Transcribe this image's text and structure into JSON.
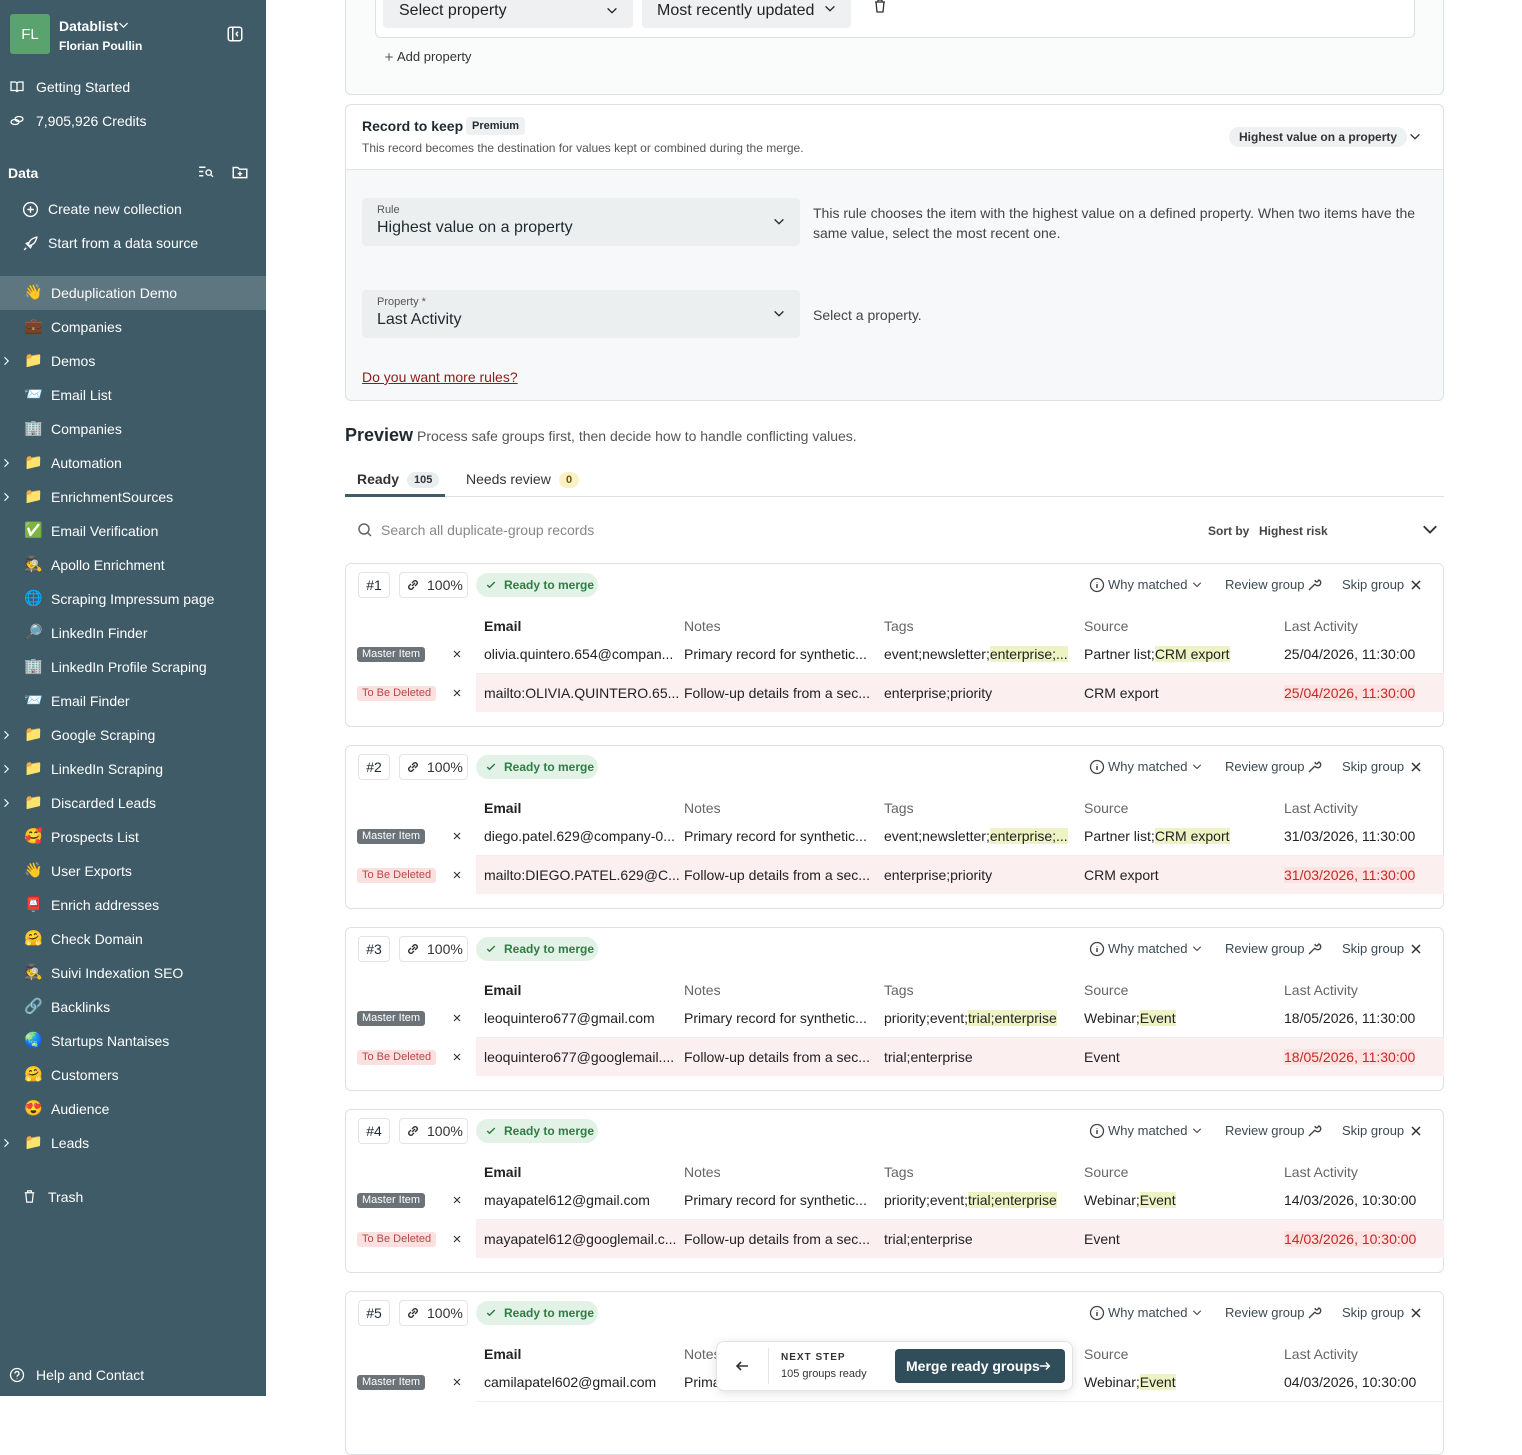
{
  "sidebar": {
    "initials": "FL",
    "workspace": "Datablist",
    "user": "Florian Poullin",
    "links": [
      "Getting Started",
      "7,905,926 Credits"
    ],
    "data_header": "Data",
    "actions": [
      "Create new collection",
      "Start from a data source"
    ],
    "collections": [
      {
        "icon": "👋",
        "name": "Deduplication Demo",
        "active": true
      },
      {
        "icon": "💼",
        "name": "Companies"
      },
      {
        "icon": "📁",
        "name": "Demos",
        "folder": true
      },
      {
        "icon": "📨",
        "name": "Email List"
      },
      {
        "icon": "🏢",
        "name": "Companies"
      },
      {
        "icon": "📁",
        "name": "Automation",
        "folder": true
      },
      {
        "icon": "📁",
        "name": "EnrichmentSources",
        "folder": true
      },
      {
        "icon": "✅",
        "name": "Email Verification"
      },
      {
        "icon": "🕵️",
        "name": "Apollo Enrichment"
      },
      {
        "icon": "🌐",
        "name": "Scraping Impressum page"
      },
      {
        "icon": "🔎",
        "name": "LinkedIn Finder"
      },
      {
        "icon": "🏢",
        "name": "LinkedIn Profile Scraping"
      },
      {
        "icon": "📨",
        "name": "Email Finder"
      },
      {
        "icon": "📁",
        "name": "Google Scraping",
        "folder": true
      },
      {
        "icon": "📁",
        "name": "LinkedIn Scraping",
        "folder": true
      },
      {
        "icon": "📁",
        "name": "Discarded Leads",
        "folder": true
      },
      {
        "icon": "🥰",
        "name": "Prospects List"
      },
      {
        "icon": "👋",
        "name": "User Exports"
      },
      {
        "icon": "📮",
        "name": "Enrich addresses"
      },
      {
        "icon": "🤗",
        "name": "Check Domain"
      },
      {
        "icon": "🕵️",
        "name": "Suivi Indexation SEO"
      },
      {
        "icon": "🔗",
        "name": "Backlinks"
      },
      {
        "icon": "🌏",
        "name": "Startups Nantaises"
      },
      {
        "icon": "🤗",
        "name": "Customers"
      },
      {
        "icon": "😍",
        "name": "Audience"
      },
      {
        "icon": "📁",
        "name": "Leads",
        "folder": true
      }
    ],
    "trash": "Trash",
    "help": "Help and Contact"
  },
  "sort_rule": {
    "property": "Select property",
    "order": "Most recently updated",
    "add": "Add property"
  },
  "record_to_keep": {
    "title": "Record to keep",
    "badge": "Premium",
    "description": "This record becomes the destination for values kept or combined during the merge.",
    "selected": "Highest value on a property",
    "rule_label": "Rule",
    "rule_value": "Highest value on a property",
    "rule_description": "This rule chooses the item with the highest value on a defined property. When two items have the same value, select the most recent one.",
    "property_label": "Property *",
    "property_value": "Last Activity",
    "property_hint": "Select a property.",
    "more_rules": "Do you want more rules?"
  },
  "preview": {
    "title": "Preview",
    "subtitle": "Process safe groups first, then decide how to handle conflicting values.",
    "tabs": [
      {
        "label": "Ready",
        "count": "105"
      },
      {
        "label": "Needs review",
        "count": "0"
      }
    ],
    "search": "Search all duplicate-group records",
    "sort_label": "Sort by",
    "sort_value": "Highest risk",
    "actions": {
      "why": "Why matched",
      "review": "Review group",
      "skip": "Skip group"
    },
    "columns": [
      "Email",
      "Notes",
      "Tags",
      "Source",
      "Last Activity"
    ],
    "groups": [
      {
        "number": "#1",
        "score": "100%",
        "status": "Ready to merge",
        "rows": [
          {
            "badge": "Master Item",
            "email": "olivia.quintero.654@compan...",
            "notes": "Primary record for synthetic...",
            "tags": "event;newsletter;",
            "tags_new": "enterprise;...",
            "source": "Partner list;",
            "source_new": "CRM export",
            "last_activity": "25/04/2026, 11:30:00"
          },
          {
            "badge": "To Be Deleted",
            "email": "mailto:OLIVIA.QUINTERO.65...",
            "notes": "Follow-up details from a sec...",
            "tags": "enterprise;priority",
            "source": "CRM export",
            "last_activity": "25/04/2026, 11:30:00"
          }
        ]
      },
      {
        "number": "#2",
        "score": "100%",
        "status": "Ready to merge",
        "rows": [
          {
            "badge": "Master Item",
            "email": "diego.patel.629@company-0...",
            "notes": "Primary record for synthetic...",
            "tags": "event;newsletter;",
            "tags_new": "enterprise;...",
            "source": "Partner list;",
            "source_new": "CRM export",
            "last_activity": "31/03/2026, 11:30:00"
          },
          {
            "badge": "To Be Deleted",
            "email": "mailto:DIEGO.PATEL.629@C...",
            "notes": "Follow-up details from a sec...",
            "tags": "enterprise;priority",
            "source": "CRM export",
            "last_activity": "31/03/2026, 11:30:00"
          }
        ]
      },
      {
        "number": "#3",
        "score": "100%",
        "status": "Ready to merge",
        "rows": [
          {
            "badge": "Master Item",
            "email": "leoquintero677@gmail.com",
            "notes": "Primary record for synthetic...",
            "tags": "priority;event;",
            "tags_new": "trial;enterprise",
            "source": "Webinar;",
            "source_new": "Event",
            "last_activity": "18/05/2026, 11:30:00"
          },
          {
            "badge": "To Be Deleted",
            "email": "leoquintero677@googlemail....",
            "notes": "Follow-up details from a sec...",
            "tags": "trial;enterprise",
            "source": "Event",
            "last_activity": "18/05/2026, 11:30:00"
          }
        ]
      },
      {
        "number": "#4",
        "score": "100%",
        "status": "Ready to merge",
        "rows": [
          {
            "badge": "Master Item",
            "email": "mayapatel612@gmail.com",
            "notes": "Primary record for synthetic...",
            "tags": "priority;event;",
            "tags_new": "trial;enterprise",
            "source": "Webinar;",
            "source_new": "Event",
            "last_activity": "14/03/2026, 10:30:00"
          },
          {
            "badge": "To Be Deleted",
            "email": "mayapatel612@googlemail.c...",
            "notes": "Follow-up details from a sec...",
            "tags": "trial;enterprise",
            "source": "Event",
            "last_activity": "14/03/2026, 10:30:00"
          }
        ]
      },
      {
        "number": "#5",
        "score": "100%",
        "status": "Ready to merge",
        "rows": [
          {
            "badge": "Master Item",
            "email": "camilapatel602@gmail.com",
            "notes": "Prima",
            "source": "Webinar;",
            "source_new": "Event",
            "last_activity": "04/03/2026, 10:30:00"
          }
        ]
      }
    ]
  },
  "next_step": {
    "label": "NEXT STEP",
    "count": "105 groups ready",
    "button": "Merge ready groups"
  }
}
